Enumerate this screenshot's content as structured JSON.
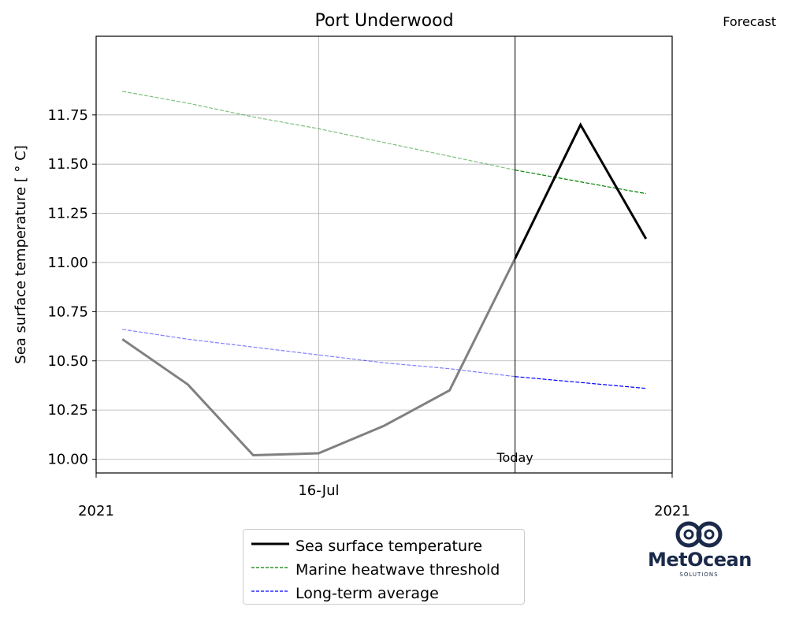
{
  "chart_data": {
    "type": "line",
    "title": "Port Underwood",
    "forecast_label": "Forecast",
    "today_label": "Today",
    "ylabel": "Sea surface temperature [$^\\circ$C]",
    "ylabel_display": "Sea surface temperature [ ° C]",
    "ylim": [
      9.93,
      12.15
    ],
    "yticks": [
      10.0,
      10.25,
      10.5,
      10.75,
      11.0,
      11.25,
      11.5,
      11.75
    ],
    "ytick_labels": [
      "10.00",
      "10.25",
      "10.50",
      "10.75",
      "11.00",
      "11.25",
      "11.50",
      "11.75"
    ],
    "xlim_days": [
      12.6,
      21.4
    ],
    "x_ticks": [
      {
        "day": 16,
        "label": "16-Jul"
      }
    ],
    "x_edge_labels": [
      "2021",
      "2021"
    ],
    "today_day": 19,
    "grid": true,
    "legend_position": "bottom-center",
    "series": [
      {
        "name": "Sea surface temperature",
        "color_past": "#808080",
        "color_forecast": "#000000",
        "x_days": [
          13,
          14,
          15,
          16,
          17,
          18,
          19,
          20,
          21
        ],
        "x_dates": [
          "2021-07-13",
          "2021-07-14",
          "2021-07-15",
          "2021-07-16",
          "2021-07-17",
          "2021-07-18",
          "2021-07-19",
          "2021-07-20",
          "2021-07-21"
        ],
        "values": [
          10.61,
          10.38,
          10.02,
          10.03,
          10.17,
          10.35,
          11.02,
          11.7,
          11.12
        ]
      },
      {
        "name": "Marine heatwave threshold",
        "color": "#008000",
        "dashed": true,
        "x_days": [
          13,
          14,
          15,
          16,
          17,
          18,
          19,
          20,
          21
        ],
        "values": [
          11.87,
          11.81,
          11.74,
          11.68,
          11.61,
          11.54,
          11.47,
          11.41,
          11.35
        ]
      },
      {
        "name": "Long-term average",
        "color": "#0000ff",
        "dashed": true,
        "x_days": [
          13,
          14,
          15,
          16,
          17,
          18,
          19,
          20,
          21
        ],
        "values": [
          10.66,
          10.61,
          10.57,
          10.53,
          10.49,
          10.46,
          10.42,
          10.39,
          10.36
        ]
      }
    ]
  },
  "logo": {
    "text": "MetOcean",
    "subtext": "SOLUTIONS"
  }
}
